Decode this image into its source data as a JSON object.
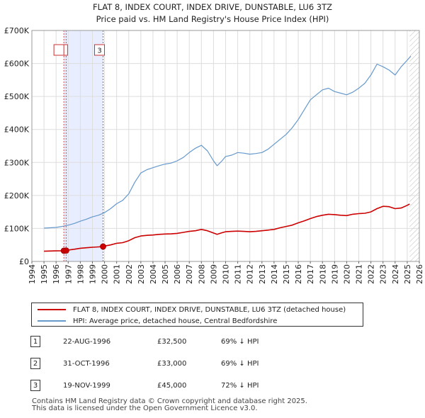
{
  "title_line1": "FLAT 8, INDEX COURT, INDEX DRIVE, DUNSTABLE, LU6 3TZ",
  "title_line2": "Price paid vs. HM Land Registry's House Price Index (HPI)",
  "chart_data": {
    "type": "line",
    "title": "Price paid vs. HM Land Registry's House Price Index (HPI)",
    "xlim": [
      1994,
      2026
    ],
    "ylim": [
      0,
      700000
    ],
    "x_ticks": [
      1994,
      1995,
      1996,
      1997,
      1998,
      1999,
      2000,
      2001,
      2002,
      2003,
      2004,
      2005,
      2006,
      2007,
      2008,
      2009,
      2010,
      2011,
      2012,
      2013,
      2014,
      2015,
      2016,
      2017,
      2018,
      2019,
      2020,
      2021,
      2022,
      2023,
      2024,
      2025,
      2026
    ],
    "y_ticks": [
      {
        "value": 0,
        "label": "£0"
      },
      {
        "value": 100000,
        "label": "£100K"
      },
      {
        "value": 200000,
        "label": "£200K"
      },
      {
        "value": 300000,
        "label": "£300K"
      },
      {
        "value": 400000,
        "label": "£400K"
      },
      {
        "value": 500000,
        "label": "£500K"
      },
      {
        "value": 600000,
        "label": "£600K"
      },
      {
        "value": 700000,
        "label": "£700K"
      }
    ],
    "grid": true,
    "shaded_span": [
      1996.64,
      1999.88
    ],
    "future_hatch_from": 2025.2,
    "series": [
      {
        "name": "FLAT 8, INDEX COURT, INDEX DRIVE, DUNSTABLE, LU6 3TZ (detached house)",
        "color": "#cc0000",
        "x": [
          1995.0,
          1995.5,
          1996.0,
          1996.64,
          1996.83,
          1997.0,
          1997.5,
          1998.0,
          1998.5,
          1999.0,
          1999.5,
          1999.88,
          2000.0,
          2000.5,
          2001.0,
          2001.5,
          2002.0,
          2002.5,
          2003.0,
          2003.5,
          2004.0,
          2004.5,
          2005.0,
          2005.5,
          2006.0,
          2006.5,
          2007.0,
          2007.5,
          2008.0,
          2008.5,
          2009.0,
          2009.3,
          2009.7,
          2010.0,
          2010.5,
          2011.0,
          2011.5,
          2012.0,
          2012.5,
          2013.0,
          2013.5,
          2014.0,
          2014.5,
          2015.0,
          2015.5,
          2016.0,
          2016.5,
          2017.0,
          2017.5,
          2018.0,
          2018.5,
          2019.0,
          2019.5,
          2020.0,
          2020.5,
          2021.0,
          2021.5,
          2022.0,
          2022.5,
          2023.0,
          2023.5,
          2024.0,
          2024.5,
          2025.0,
          2025.2
        ],
        "values": [
          31000,
          31500,
          32000,
          32500,
          33000,
          34500,
          37000,
          40000,
          41500,
          43000,
          44000,
          45000,
          46500,
          50000,
          55000,
          57000,
          63000,
          72000,
          77000,
          79000,
          80000,
          82000,
          83000,
          83500,
          85000,
          88000,
          91000,
          93000,
          97000,
          93000,
          86000,
          82000,
          87000,
          90000,
          91000,
          92000,
          91000,
          90000,
          91000,
          93000,
          95000,
          97000,
          102000,
          106000,
          110000,
          117000,
          123000,
          130000,
          136000,
          140000,
          143000,
          142000,
          140000,
          139000,
          143000,
          145000,
          146000,
          150000,
          160000,
          167000,
          166000,
          160000,
          162000,
          170000,
          174000
        ]
      },
      {
        "name": "HPI: Average price, detached house, Central Bedfordshire",
        "color": "#6699cc",
        "x": [
          1995.0,
          1995.5,
          1996.0,
          1996.5,
          1997.0,
          1997.5,
          1998.0,
          1998.5,
          1999.0,
          1999.5,
          2000.0,
          2000.5,
          2001.0,
          2001.5,
          2002.0,
          2002.5,
          2003.0,
          2003.5,
          2004.0,
          2004.5,
          2005.0,
          2005.5,
          2006.0,
          2006.5,
          2007.0,
          2007.5,
          2008.0,
          2008.5,
          2009.0,
          2009.3,
          2009.7,
          2010.0,
          2010.5,
          2011.0,
          2011.5,
          2012.0,
          2012.5,
          2013.0,
          2013.5,
          2014.0,
          2014.5,
          2015.0,
          2015.5,
          2016.0,
          2016.5,
          2017.0,
          2017.5,
          2018.0,
          2018.5,
          2019.0,
          2019.5,
          2020.0,
          2020.5,
          2021.0,
          2021.5,
          2022.0,
          2022.5,
          2023.0,
          2023.5,
          2024.0,
          2024.5,
          2025.0,
          2025.3
        ],
        "values": [
          101000,
          102000,
          103000,
          106000,
          110000,
          115000,
          122000,
          128000,
          135000,
          140000,
          148000,
          160000,
          175000,
          185000,
          205000,
          240000,
          268000,
          278000,
          284000,
          290000,
          295000,
          298000,
          305000,
          315000,
          330000,
          343000,
          352000,
          335000,
          305000,
          290000,
          305000,
          318000,
          322000,
          330000,
          328000,
          325000,
          327000,
          330000,
          340000,
          355000,
          370000,
          385000,
          405000,
          430000,
          460000,
          490000,
          505000,
          520000,
          525000,
          515000,
          510000,
          505000,
          513000,
          525000,
          540000,
          565000,
          598000,
          590000,
          580000,
          565000,
          590000,
          610000,
          622000
        ]
      }
    ],
    "transactions": [
      {
        "n": "1",
        "x": 1996.64,
        "value": 32500
      },
      {
        "n": "2",
        "x": 1996.83,
        "value": 33000
      },
      {
        "n": "3",
        "x": 1999.88,
        "value": 45000
      }
    ]
  },
  "legend": {
    "property": "FLAT 8, INDEX COURT, INDEX DRIVE, DUNSTABLE, LU6 3TZ (detached house)",
    "hpi": "HPI: Average price, detached house, Central Bedfordshire"
  },
  "table": [
    {
      "n": "1",
      "date": "22-AUG-1996",
      "price": "£32,500",
      "delta": "69% ↓ HPI"
    },
    {
      "n": "2",
      "date": "31-OCT-1996",
      "price": "£33,000",
      "delta": "69% ↓ HPI"
    },
    {
      "n": "3",
      "date": "19-NOV-1999",
      "price": "£45,000",
      "delta": "72% ↓ HPI"
    }
  ],
  "footer_line1": "Contains HM Land Registry data © Crown copyright and database right 2025.",
  "footer_line2": "This data is licensed under the Open Government Licence v3.0."
}
